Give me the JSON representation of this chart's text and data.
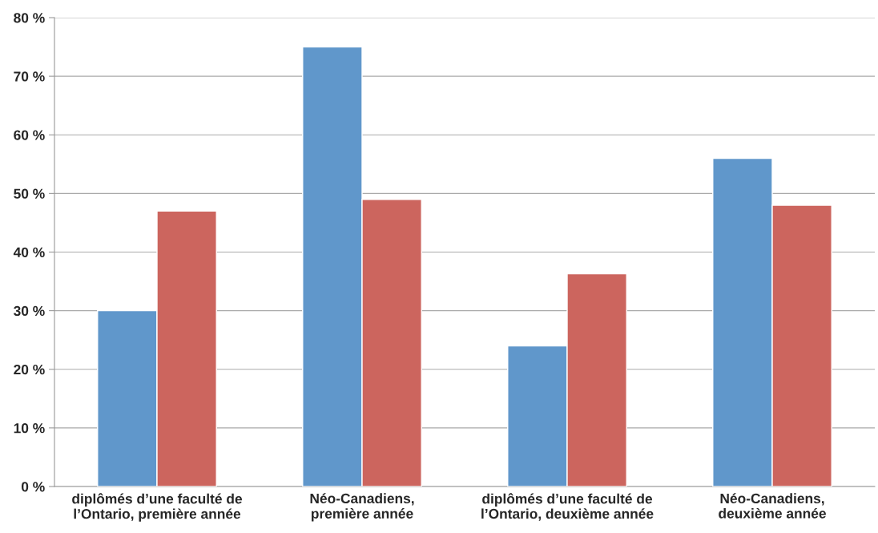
{
  "chart_data": {
    "type": "bar",
    "categories": [
      "diplômés d’une faculté de\nl’Ontario, première année",
      "Néo-Canadiens,\npremière année",
      "diplômés d’une faculté de\nl’Ontario, deuxième année",
      "Néo-Canadiens,\ndeuxième année"
    ],
    "series": [
      {
        "color": "#6097cb",
        "values": [
          30,
          75,
          24,
          56
        ]
      },
      {
        "color": "#cc655e",
        "values": [
          47,
          49,
          36.3,
          48
        ]
      }
    ],
    "ylim": [
      0,
      80
    ],
    "yticks": [
      {
        "value": 0,
        "label": "0 %"
      },
      {
        "value": 10,
        "label": "10 %"
      },
      {
        "value": 20,
        "label": "20 %"
      },
      {
        "value": 30,
        "label": "30 %"
      },
      {
        "value": 40,
        "label": "40 %"
      },
      {
        "value": 50,
        "label": "50 %"
      },
      {
        "value": 60,
        "label": "60 %"
      },
      {
        "value": 70,
        "label": "70 %"
      },
      {
        "value": 80,
        "label": "80 %"
      }
    ],
    "grid": "y"
  }
}
